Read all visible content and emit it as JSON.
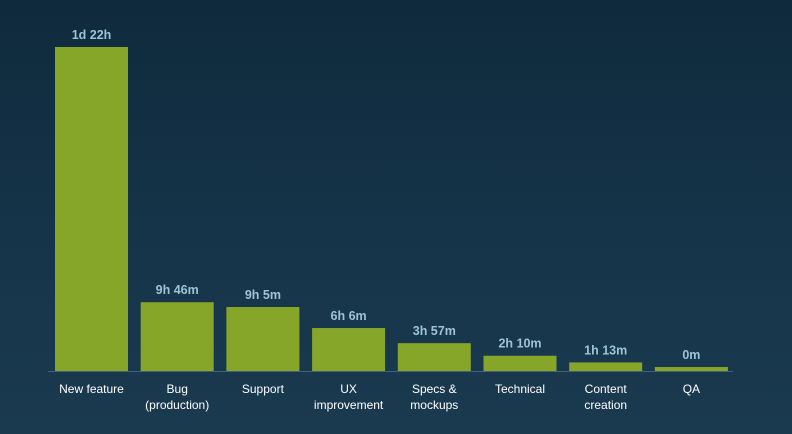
{
  "chart_data": {
    "type": "bar",
    "title": "",
    "xlabel": "",
    "ylabel": "",
    "unit": "minutes",
    "categories": [
      [
        "New feature"
      ],
      [
        "Bug",
        "(production)"
      ],
      [
        "Support"
      ],
      [
        "UX",
        "improvement"
      ],
      [
        "Specs &",
        "mockups"
      ],
      [
        "Technical"
      ],
      [
        "Content",
        "creation"
      ],
      [
        "QA"
      ]
    ],
    "values": [
      2760,
      586,
      545,
      366,
      237,
      130,
      73,
      0
    ],
    "labels": [
      "1d 22h",
      "9h 46m",
      "9h 5m",
      "6h 6m",
      "3h 57m",
      "2h 10m",
      "1h 13m",
      "0m"
    ],
    "ylim": [
      0,
      2760
    ],
    "grid": false,
    "legend": "none",
    "colors": {
      "bar": "#86a62a",
      "value_label": "#9ec3d6",
      "category_label": "#ffffff",
      "axis": "#3e6278"
    }
  }
}
